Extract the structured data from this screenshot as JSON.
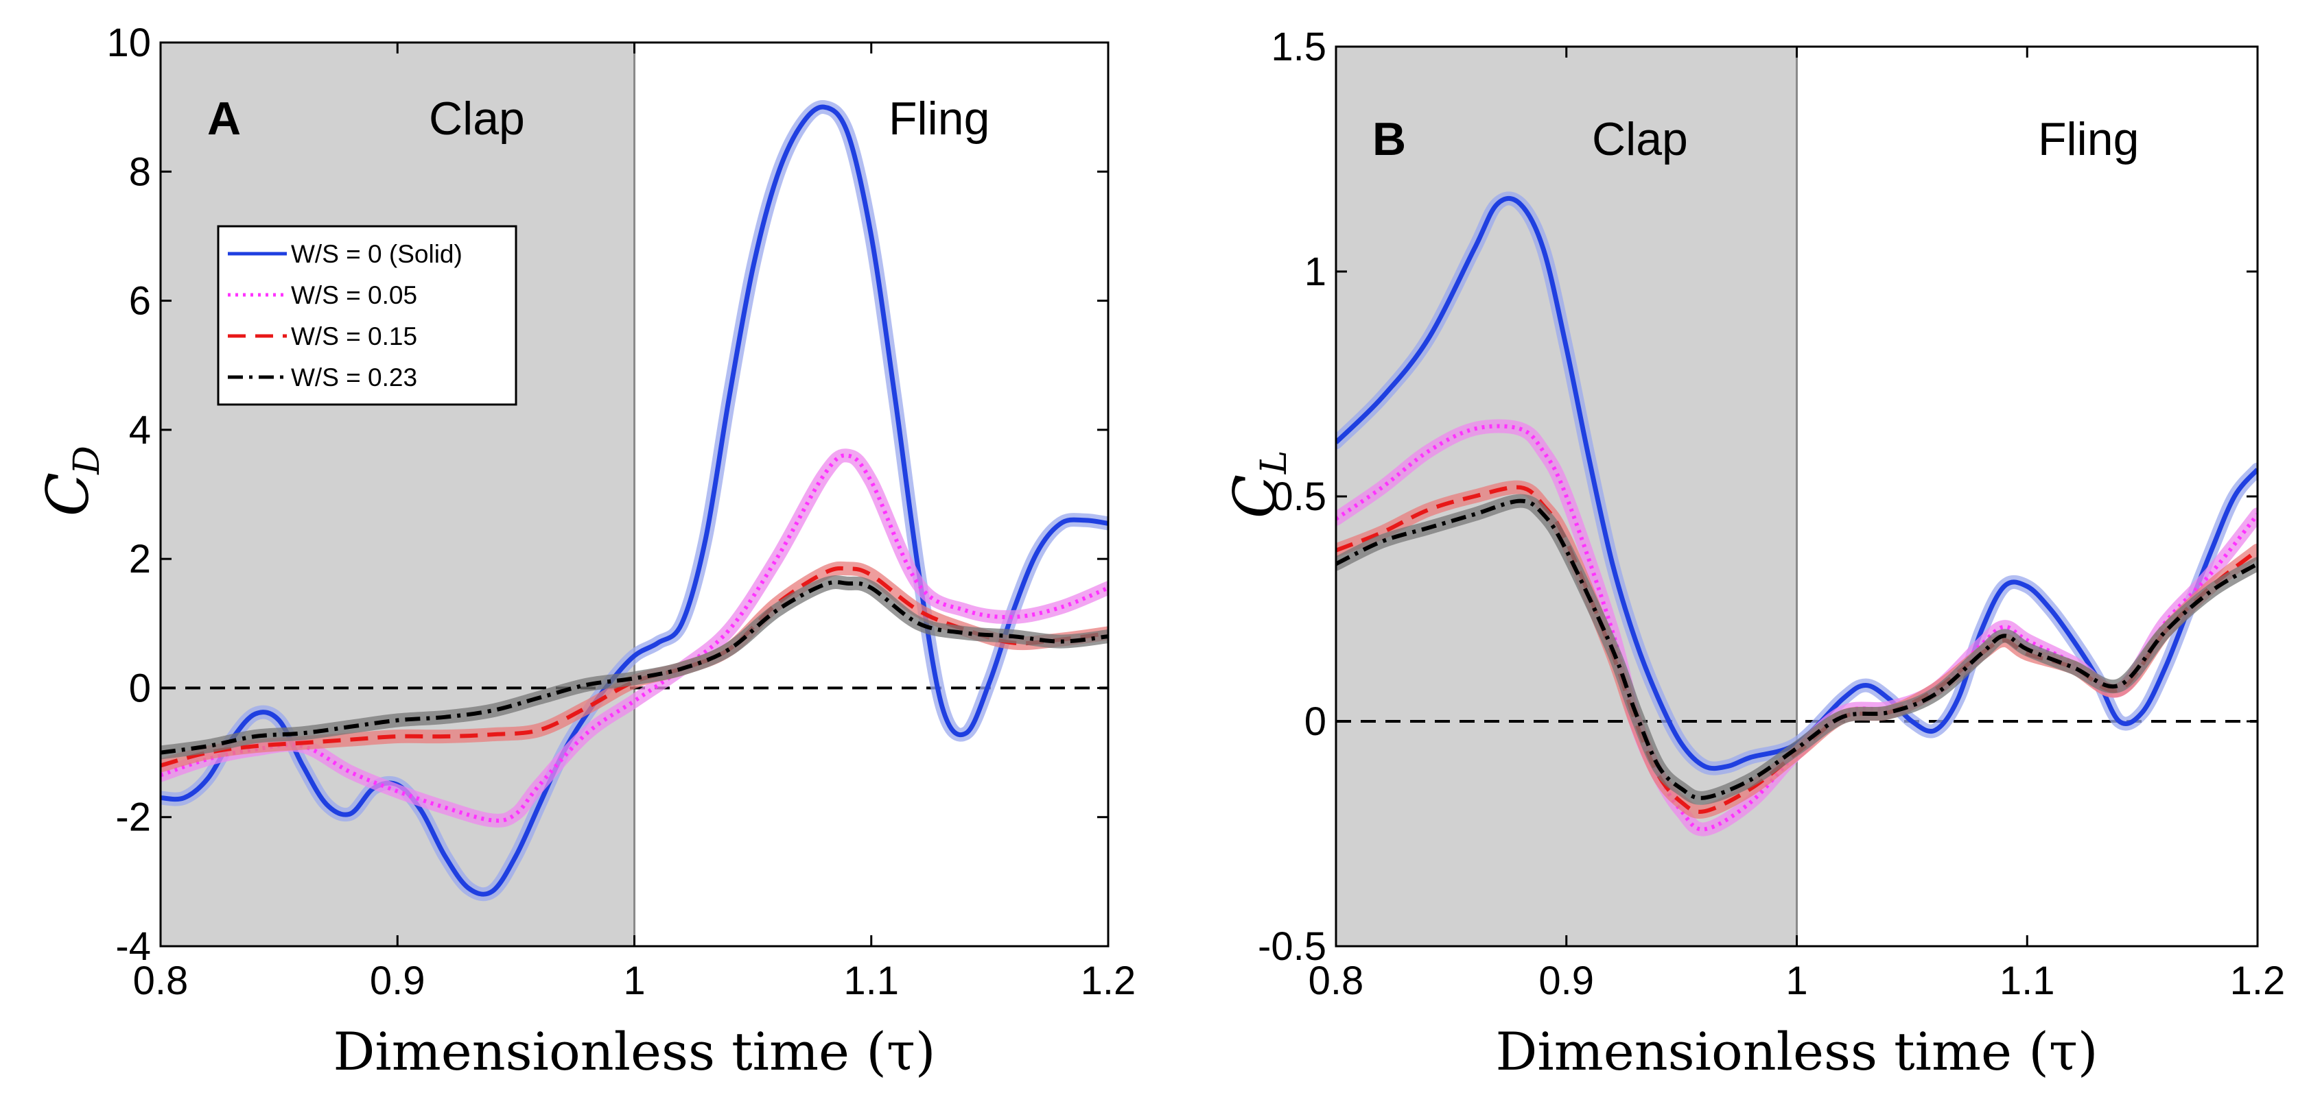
{
  "chart_data": [
    {
      "type": "line",
      "panel_label": "A",
      "phase_labels": {
        "clap": "Clap",
        "fling": "Fling"
      },
      "clap_region": [
        0.8,
        1.0
      ],
      "xlabel": "Dimensionless time (τ)",
      "ylabel": "C",
      "ylabel_sub": "D",
      "xlim": [
        0.8,
        1.2
      ],
      "ylim": [
        -4,
        10
      ],
      "xticks": [
        "0.8",
        "0.9",
        "1",
        "1.1",
        "1.2"
      ],
      "yticks": [
        "-4",
        "-2",
        "0",
        "2",
        "4",
        "6",
        "8",
        "10"
      ],
      "reference_line": 0,
      "legend": {
        "placement": "upper-left",
        "entries": [
          "W/S = 0 (Solid)",
          "W/S = 0.05",
          "W/S = 0.15",
          "W/S = 0.23"
        ]
      },
      "series": [
        {
          "name": "W/S = 0 (Solid)",
          "color": "#1f3fe0",
          "band": "#9aa8ee",
          "style": "solid",
          "x": [
            0.8,
            0.81,
            0.82,
            0.83,
            0.84,
            0.85,
            0.86,
            0.87,
            0.88,
            0.89,
            0.9,
            0.91,
            0.92,
            0.93,
            0.94,
            0.95,
            0.96,
            0.97,
            0.98,
            0.99,
            1.0,
            1.01,
            1.02,
            1.03,
            1.04,
            1.05,
            1.06,
            1.07,
            1.08,
            1.09,
            1.1,
            1.11,
            1.12,
            1.13,
            1.14,
            1.15,
            1.16,
            1.17,
            1.18,
            1.19,
            1.2
          ],
          "y": [
            -1.7,
            -1.7,
            -1.4,
            -0.8,
            -0.4,
            -0.5,
            -1.2,
            -1.8,
            -1.95,
            -1.55,
            -1.5,
            -1.9,
            -2.6,
            -3.1,
            -3.15,
            -2.6,
            -1.8,
            -1.0,
            -0.4,
            0.1,
            0.5,
            0.7,
            1.0,
            2.3,
            4.5,
            6.5,
            7.9,
            8.7,
            9.0,
            8.6,
            7.0,
            4.5,
            1.8,
            -0.3,
            -0.7,
            0.1,
            1.2,
            2.1,
            2.55,
            2.6,
            2.55
          ]
        },
        {
          "name": "W/S = 0.05",
          "color": "#ff33ff",
          "band": "#ee88ee",
          "style": "dotted",
          "x": [
            0.8,
            0.82,
            0.84,
            0.86,
            0.88,
            0.9,
            0.92,
            0.94,
            0.95,
            0.96,
            0.98,
            1.0,
            1.02,
            1.04,
            1.06,
            1.08,
            1.09,
            1.1,
            1.12,
            1.14,
            1.16,
            1.18,
            1.2
          ],
          "y": [
            -1.35,
            -1.1,
            -0.95,
            -0.9,
            -1.3,
            -1.6,
            -1.85,
            -2.05,
            -1.95,
            -1.5,
            -0.7,
            -0.2,
            0.3,
            0.9,
            2.0,
            3.3,
            3.6,
            3.2,
            1.6,
            1.2,
            1.1,
            1.25,
            1.55
          ]
        },
        {
          "name": "W/S = 0.15",
          "color": "#e81818",
          "band": "#e87c7c",
          "style": "dashed",
          "x": [
            0.8,
            0.82,
            0.84,
            0.86,
            0.88,
            0.9,
            0.92,
            0.94,
            0.96,
            0.98,
            1.0,
            1.02,
            1.04,
            1.06,
            1.08,
            1.09,
            1.1,
            1.12,
            1.14,
            1.16,
            1.18,
            1.2
          ],
          "y": [
            -1.2,
            -1.0,
            -0.9,
            -0.85,
            -0.8,
            -0.75,
            -0.75,
            -0.72,
            -0.65,
            -0.3,
            0.1,
            0.3,
            0.6,
            1.3,
            1.78,
            1.85,
            1.75,
            1.2,
            0.9,
            0.7,
            0.75,
            0.85
          ]
        },
        {
          "name": "W/S = 0.23",
          "color": "#000000",
          "band": "#777777",
          "style": "dashdot",
          "x": [
            0.8,
            0.82,
            0.84,
            0.86,
            0.88,
            0.9,
            0.92,
            0.94,
            0.96,
            0.98,
            1.0,
            1.02,
            1.04,
            1.06,
            1.08,
            1.09,
            1.1,
            1.12,
            1.14,
            1.16,
            1.18,
            1.2
          ],
          "y": [
            -1.0,
            -0.9,
            -0.75,
            -0.7,
            -0.6,
            -0.5,
            -0.45,
            -0.35,
            -0.15,
            0.05,
            0.15,
            0.3,
            0.6,
            1.2,
            1.6,
            1.62,
            1.55,
            1.0,
            0.85,
            0.8,
            0.72,
            0.8
          ]
        }
      ]
    },
    {
      "type": "line",
      "panel_label": "B",
      "phase_labels": {
        "clap": "Clap",
        "fling": "Fling"
      },
      "clap_region": [
        0.8,
        1.0
      ],
      "xlabel": "Dimensionless time (τ)",
      "ylabel": "C",
      "ylabel_sub": "L",
      "xlim": [
        0.8,
        1.2
      ],
      "ylim": [
        -0.5,
        1.5
      ],
      "xticks": [
        "0.8",
        "0.9",
        "1",
        "1.1",
        "1.2"
      ],
      "yticks": [
        "-0.5",
        "0",
        "0.5",
        "1",
        "1.5"
      ],
      "reference_line": 0,
      "series": [
        {
          "name": "W/S = 0 (Solid)",
          "color": "#1f3fe0",
          "band": "#9aa8ee",
          "style": "solid",
          "x": [
            0.8,
            0.82,
            0.84,
            0.86,
            0.87,
            0.88,
            0.89,
            0.9,
            0.91,
            0.92,
            0.93,
            0.94,
            0.95,
            0.96,
            0.97,
            0.98,
            1.0,
            1.02,
            1.03,
            1.04,
            1.05,
            1.06,
            1.07,
            1.08,
            1.09,
            1.1,
            1.11,
            1.12,
            1.13,
            1.14,
            1.15,
            1.16,
            1.17,
            1.18,
            1.19,
            1.2
          ],
          "y": [
            0.62,
            0.72,
            0.85,
            1.05,
            1.15,
            1.15,
            1.05,
            0.83,
            0.58,
            0.35,
            0.18,
            0.05,
            -0.05,
            -0.1,
            -0.1,
            -0.08,
            -0.05,
            0.05,
            0.08,
            0.05,
            0.0,
            -0.02,
            0.05,
            0.2,
            0.3,
            0.3,
            0.25,
            0.18,
            0.1,
            0.0,
            0.02,
            0.12,
            0.25,
            0.38,
            0.5,
            0.56
          ]
        },
        {
          "name": "W/S = 0.05",
          "color": "#ff33ff",
          "band": "#ee88ee",
          "style": "dotted",
          "x": [
            0.8,
            0.82,
            0.84,
            0.86,
            0.88,
            0.89,
            0.9,
            0.92,
            0.93,
            0.94,
            0.95,
            0.96,
            0.98,
            1.0,
            1.02,
            1.04,
            1.06,
            1.08,
            1.09,
            1.1,
            1.12,
            1.14,
            1.16,
            1.18,
            1.2
          ],
          "y": [
            0.45,
            0.52,
            0.6,
            0.65,
            0.65,
            0.6,
            0.5,
            0.2,
            0.0,
            -0.12,
            -0.2,
            -0.24,
            -0.18,
            -0.07,
            0.02,
            0.03,
            0.07,
            0.17,
            0.21,
            0.18,
            0.13,
            0.07,
            0.22,
            0.33,
            0.46
          ]
        },
        {
          "name": "W/S = 0.15",
          "color": "#e81818",
          "band": "#e87c7c",
          "style": "dashed",
          "x": [
            0.8,
            0.82,
            0.84,
            0.86,
            0.88,
            0.89,
            0.9,
            0.92,
            0.93,
            0.94,
            0.95,
            0.96,
            0.98,
            1.0,
            1.02,
            1.04,
            1.06,
            1.08,
            1.09,
            1.1,
            1.12,
            1.14,
            1.16,
            1.18,
            1.2
          ],
          "y": [
            0.38,
            0.42,
            0.47,
            0.5,
            0.52,
            0.48,
            0.4,
            0.15,
            0.0,
            -0.12,
            -0.18,
            -0.2,
            -0.15,
            -0.07,
            0.01,
            0.02,
            0.07,
            0.15,
            0.18,
            0.15,
            0.12,
            0.07,
            0.2,
            0.3,
            0.38
          ]
        },
        {
          "name": "W/S = 0.23",
          "color": "#000000",
          "band": "#777777",
          "style": "dashdot",
          "x": [
            0.8,
            0.82,
            0.84,
            0.86,
            0.88,
            0.89,
            0.9,
            0.92,
            0.93,
            0.94,
            0.95,
            0.96,
            0.98,
            1.0,
            1.02,
            1.04,
            1.06,
            1.08,
            1.09,
            1.1,
            1.12,
            1.14,
            1.16,
            1.18,
            1.2
          ],
          "y": [
            0.35,
            0.4,
            0.43,
            0.46,
            0.49,
            0.46,
            0.38,
            0.16,
            0.02,
            -0.1,
            -0.15,
            -0.17,
            -0.13,
            -0.06,
            0.01,
            0.02,
            0.06,
            0.15,
            0.19,
            0.16,
            0.12,
            0.08,
            0.2,
            0.29,
            0.35
          ]
        }
      ]
    }
  ]
}
